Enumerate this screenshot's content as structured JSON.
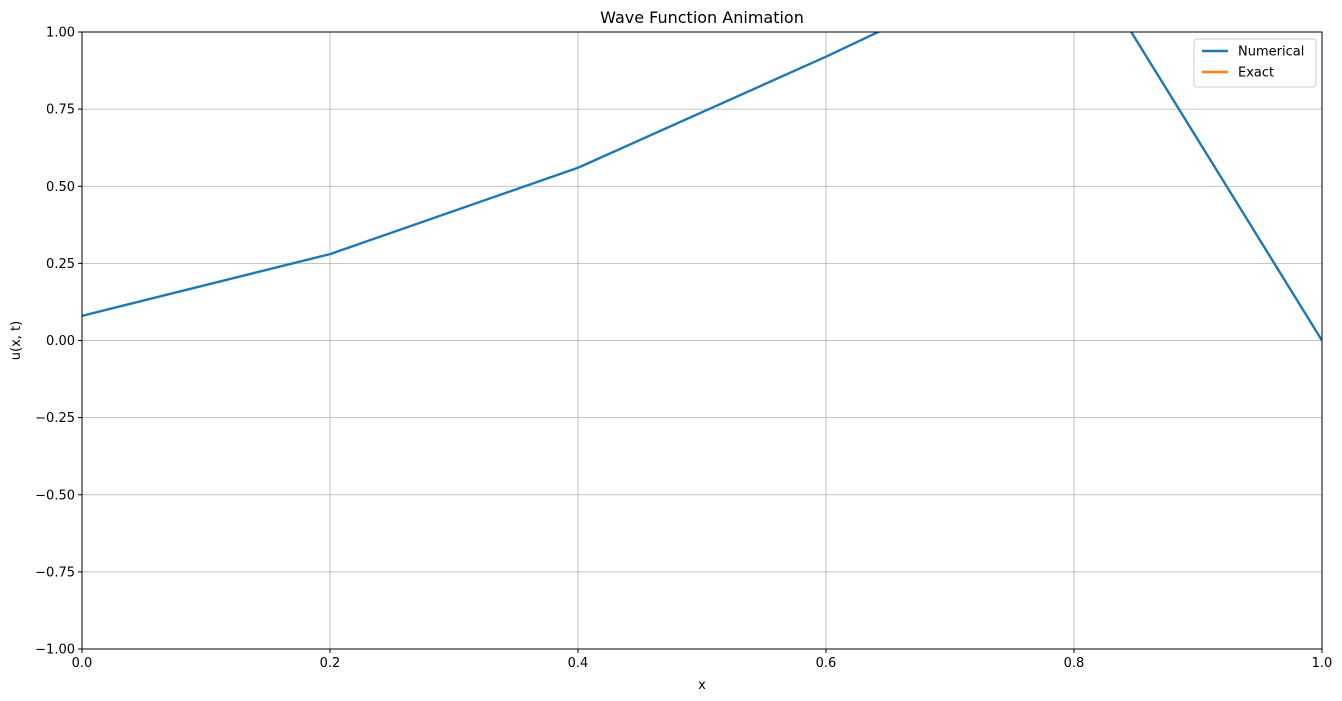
{
  "chart_data": {
    "type": "line",
    "title": "Wave Function Animation",
    "xlabel": "x",
    "ylabel": "u(x, t)",
    "xlim": [
      0,
      1
    ],
    "ylim": [
      -1,
      1
    ],
    "grid": true,
    "legend_position": "top-right",
    "x_ticks": [
      0.0,
      0.2,
      0.4,
      0.6,
      0.8,
      1.0
    ],
    "x_tick_labels": [
      "0.0",
      "0.2",
      "0.4",
      "0.6",
      "0.8",
      "1.0"
    ],
    "y_ticks": [
      1.0,
      0.75,
      0.5,
      0.25,
      0.0,
      -0.25,
      -0.5,
      -0.75,
      -1.0
    ],
    "y_tick_labels": [
      "1.00",
      "0.75",
      "0.50",
      "0.25",
      "0.00",
      "−0.25",
      "−0.50",
      "−0.75",
      "−1.00"
    ],
    "series": [
      {
        "name": "Numerical",
        "color": "#1f77b4",
        "x": [
          0.0,
          0.2,
          0.4,
          0.6,
          0.8,
          1.0
        ],
        "y": [
          0.08,
          0.28,
          0.56,
          0.92,
          1.3,
          0.0
        ]
      },
      {
        "name": "Exact",
        "color": "#ff7f0e",
        "x": [],
        "y": []
      }
    ]
  }
}
